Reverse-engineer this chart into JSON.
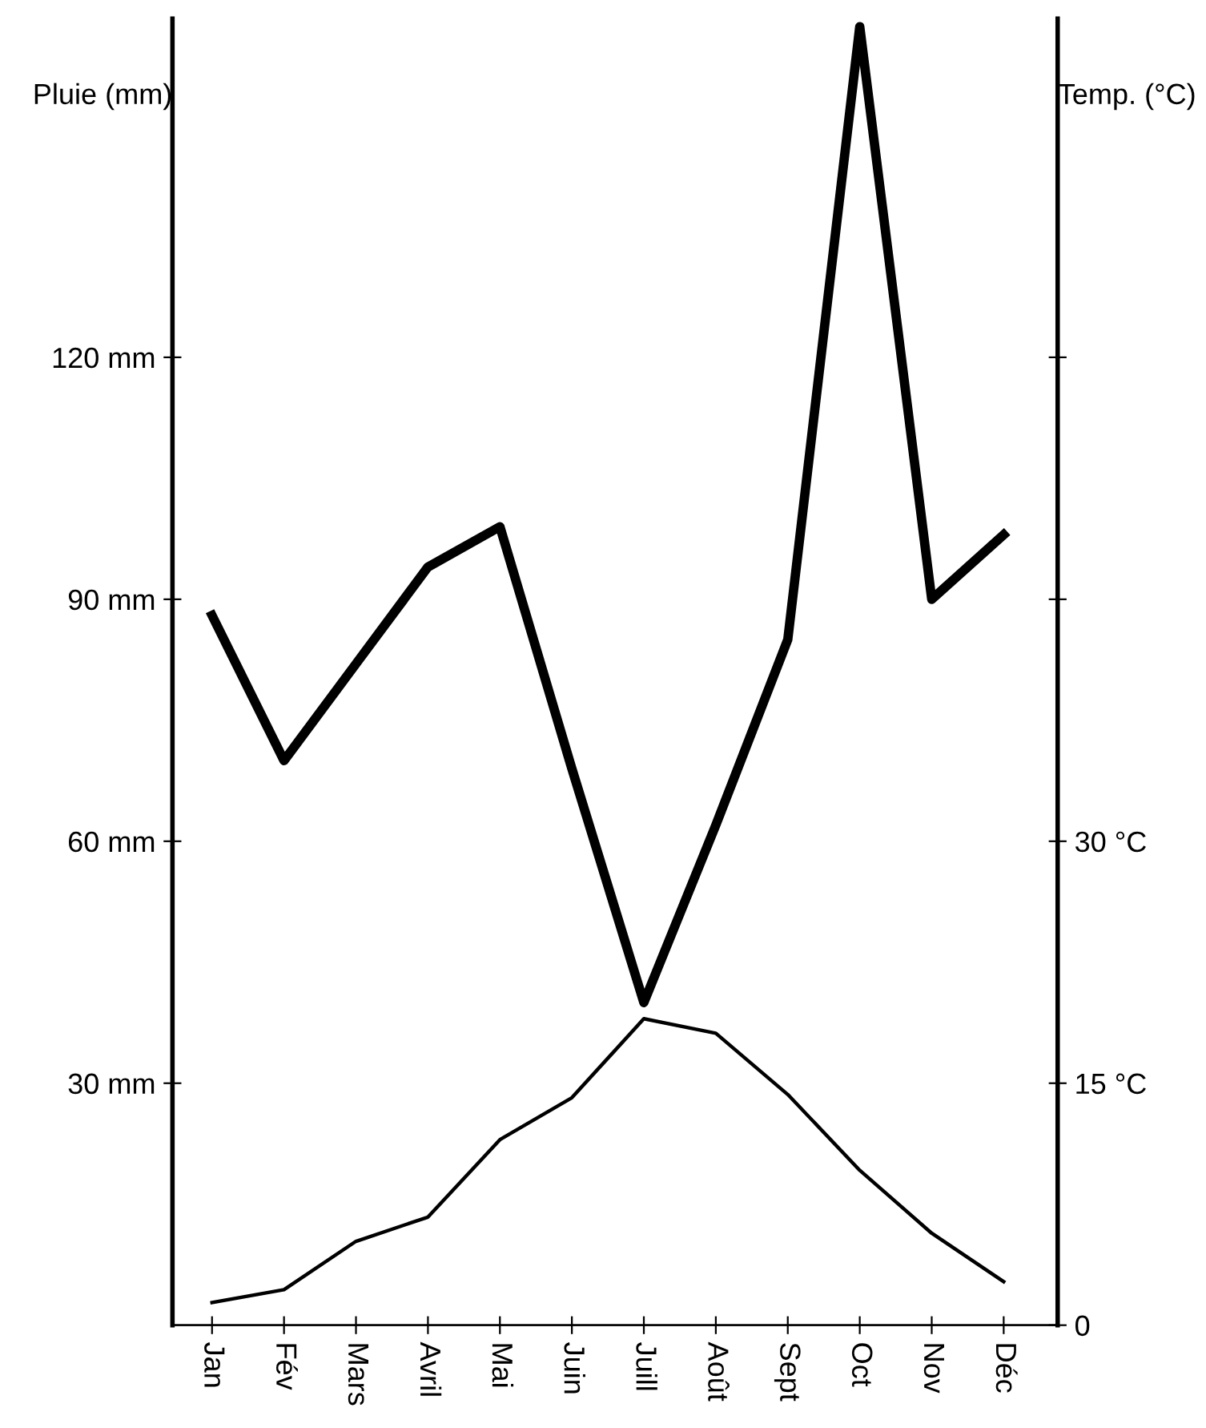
{
  "chart_data": {
    "type": "line",
    "ylabel": "Pluie (mm)",
    "y2label": "Temp. (°C)",
    "categories": [
      "Jan",
      "Fév",
      "Mars",
      "Avril",
      "Mai",
      "Juin",
      "Juill",
      "Août",
      "Sept",
      "Oct",
      "Nov",
      "Déc"
    ],
    "series": [
      {
        "color": "#000000",
        "values": [
          88,
          70,
          82,
          94,
          99,
          69,
          40,
          62,
          85,
          161,
          90,
          98
        ]
      },
      {
        "color": "#000000",
        "axis": "y2",
        "values": [
          1.4,
          2.2,
          5.2,
          6.7,
          11.5,
          14.1,
          19.0,
          18.1,
          14.3,
          9.6,
          5.7,
          2.7
        ]
      }
    ],
    "ylim": [
      0,
      162
    ],
    "yticks": [
      {
        "value": 30,
        "label": "30 mm"
      },
      {
        "value": 60,
        "label": "60 mm"
      },
      {
        "value": 90,
        "label": "90 mm"
      },
      {
        "value": 120,
        "label": "120 mm"
      }
    ],
    "y2lim": [
      0,
      81
    ],
    "y2ticks": [
      0,
      {
        "value": 15,
        "label": "15 °C"
      },
      {
        "value": 30,
        "label": "30 °C"
      },
      {
        "value": 45,
        "label": null
      },
      {
        "value": 60,
        "label": null
      }
    ],
    "grid": false,
    "legend": false,
    "marker": "none",
    "line_style": "solid"
  }
}
